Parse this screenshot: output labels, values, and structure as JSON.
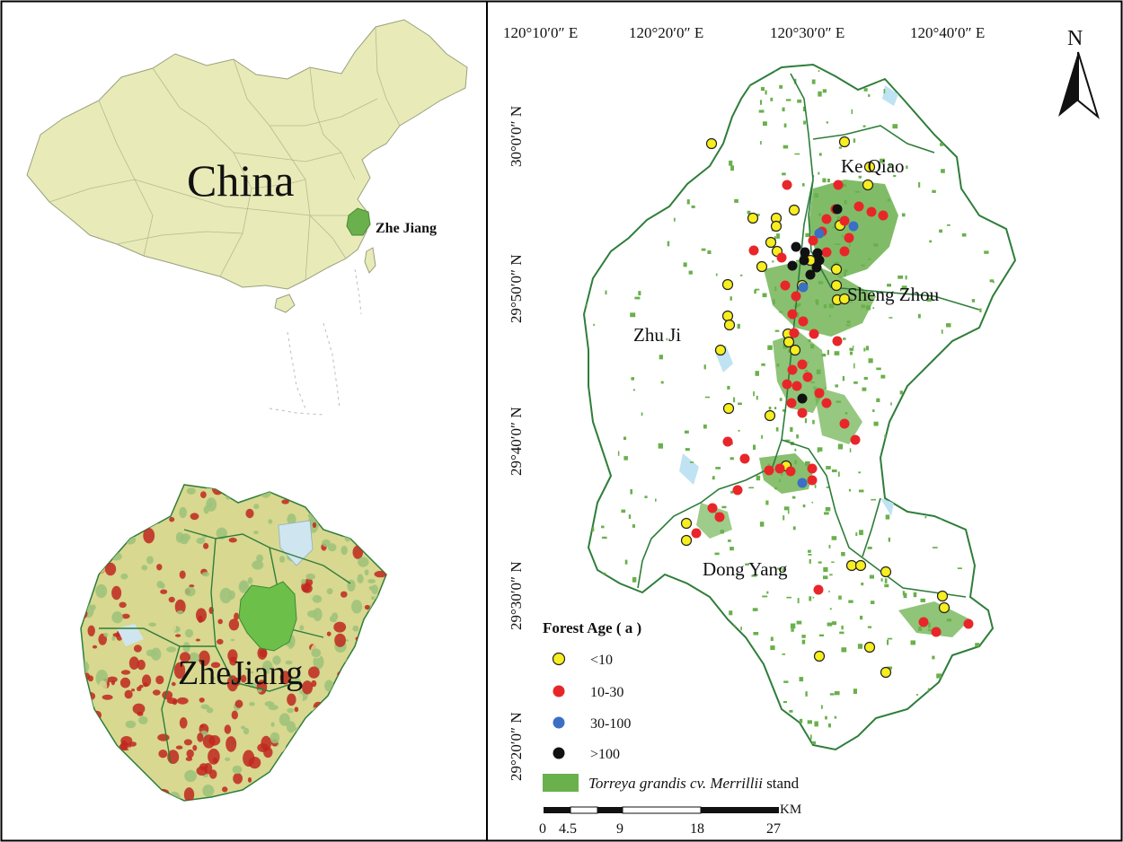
{
  "left_panel": {
    "china_map": {
      "country_label": "China",
      "province_label": "Zhe Jiang",
      "colors": {
        "land": "#e8ebb8",
        "border": "#9aa07a",
        "highlight": "#6ab04c"
      }
    },
    "zhejiang_map": {
      "label": "ZheJiang",
      "colors": {
        "lowland": "#d8d890",
        "upland": "#9cc27a",
        "mountain": "#c0281e",
        "water": "#cfe6f0",
        "study_area": "#6cc04a",
        "outline": "#2e7d3a"
      }
    }
  },
  "right_panel": {
    "longitude_labels": [
      "120°10′0″ E",
      "120°20′0″ E",
      "120°30′0″ E",
      "120°40′0″ E"
    ],
    "latitude_labels": [
      "30°0′0″ N",
      "29°50′0″ N",
      "29°40′0″ N",
      "29°30′0″ N",
      "29°20′0″ N"
    ],
    "north_arrow_label": "N",
    "county_labels": [
      "Ke Qiao",
      "Sheng Zhou",
      "Zhu Ji",
      "Dong Yang"
    ],
    "legend": {
      "title": "Forest Age ( a )",
      "items": [
        {
          "label": "<10",
          "color": "#f7ee1f"
        },
        {
          "label": "10-30",
          "color": "#e8262a"
        },
        {
          "label": "30-100",
          "color": "#3a6fc4"
        },
        {
          "label": ">100",
          "color": "#111111"
        }
      ],
      "stand_label_italic": "Torreya grandis cv. Merrillii",
      "stand_label_suffix": " stand",
      "stand_color": "#6ab04c"
    },
    "scale_bar": {
      "ticks": [
        "0",
        "4.5",
        "9",
        "18",
        "27"
      ],
      "unit": "KM"
    },
    "colors": {
      "outline": "#2e7d3a",
      "water": "#bfe3f2"
    }
  }
}
